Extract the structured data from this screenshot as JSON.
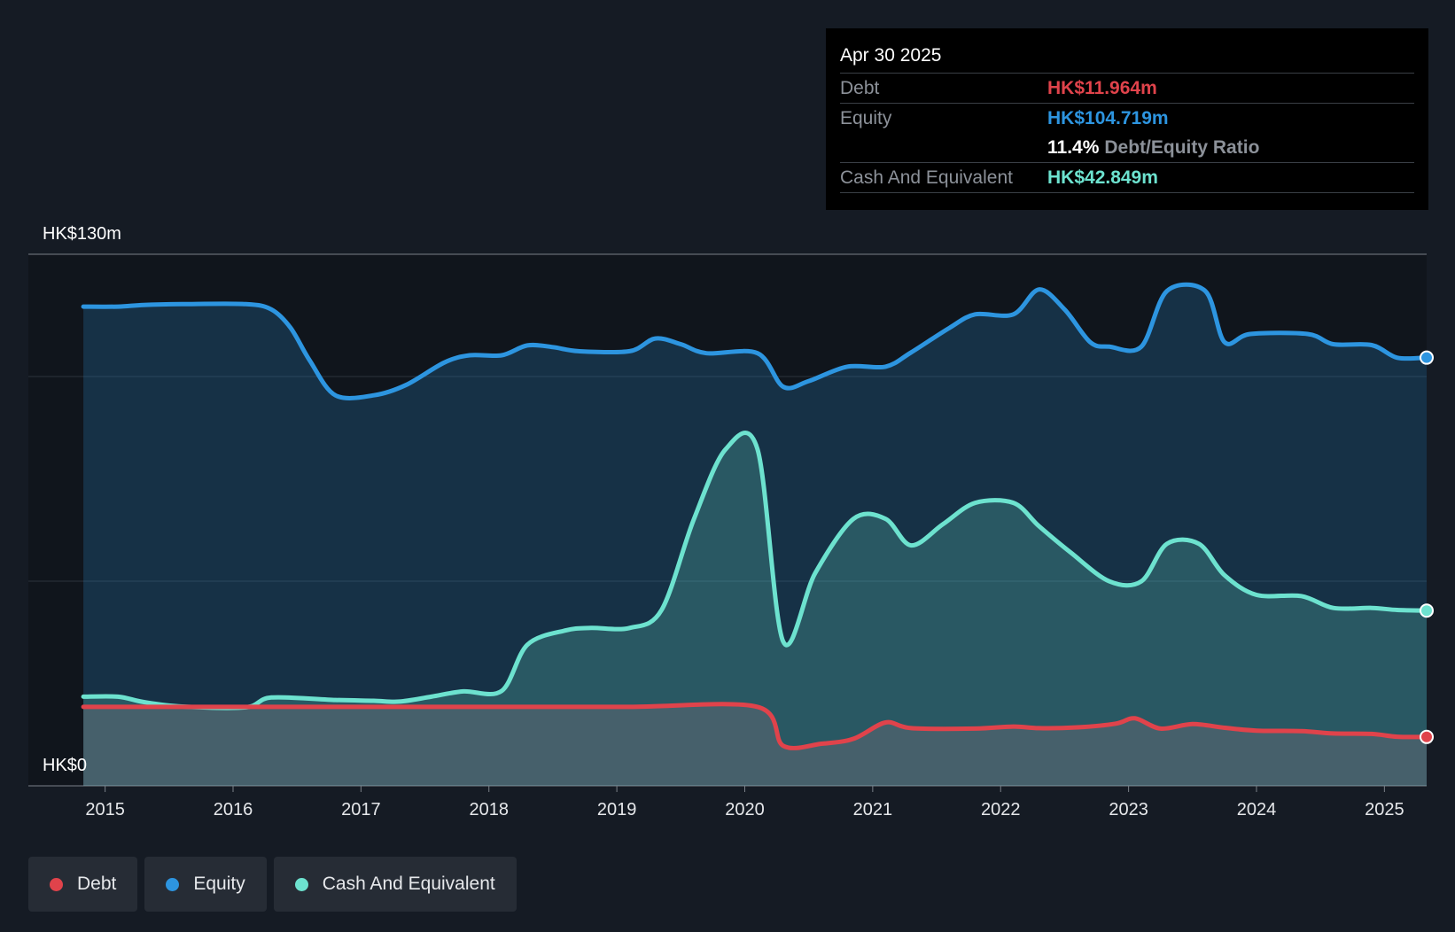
{
  "tooltip": {
    "date": "Apr 30 2025",
    "rows": [
      {
        "label": "Debt",
        "value": "HK$11.964m",
        "color": "#e0434b"
      },
      {
        "label": "Equity",
        "value": "HK$104.719m",
        "color": "#2d95e0"
      },
      {
        "ratio_value": "11.4%",
        "ratio_label": "Debt/Equity Ratio"
      },
      {
        "label": "Cash And Equivalent",
        "value": "HK$42.849m",
        "color": "#6de2cf"
      }
    ]
  },
  "legend": [
    {
      "label": "Debt",
      "color": "#e0434b"
    },
    {
      "label": "Equity",
      "color": "#2d95e0"
    },
    {
      "label": "Cash And Equivalent",
      "color": "#6de2cf"
    }
  ],
  "chart_data": {
    "type": "area",
    "y_top_label": "HK$130m",
    "y_bottom_label": "HK$0",
    "ylim": [
      0,
      130
    ],
    "xlim": [
      2014.4,
      2025.33
    ],
    "x_ticks": [
      "2015",
      "2016",
      "2017",
      "2018",
      "2019",
      "2020",
      "2021",
      "2022",
      "2023",
      "2024",
      "2025"
    ],
    "grid": "horizontal",
    "legend_position": "bottom-left",
    "series": [
      {
        "name": "Equity",
        "color": "#2d95e0",
        "points": [
          [
            2014.83,
            117.2
          ],
          [
            2015.1,
            117.2
          ],
          [
            2015.3,
            117.6
          ],
          [
            2015.6,
            117.8
          ],
          [
            2016.1,
            117.8
          ],
          [
            2016.3,
            116.5
          ],
          [
            2016.45,
            112
          ],
          [
            2016.6,
            104
          ],
          [
            2016.8,
            95.5
          ],
          [
            2017.1,
            95.5
          ],
          [
            2017.35,
            98
          ],
          [
            2017.65,
            103.5
          ],
          [
            2017.85,
            105.3
          ],
          [
            2018.1,
            105.3
          ],
          [
            2018.3,
            107.7
          ],
          [
            2018.5,
            107.3
          ],
          [
            2018.7,
            106.3
          ],
          [
            2019.1,
            106.3
          ],
          [
            2019.3,
            109.4
          ],
          [
            2019.5,
            108
          ],
          [
            2019.7,
            105.8
          ],
          [
            2020.1,
            105.8
          ],
          [
            2020.3,
            97.6
          ],
          [
            2020.5,
            99
          ],
          [
            2020.8,
            102.5
          ],
          [
            2021.1,
            102.5
          ],
          [
            2021.3,
            106
          ],
          [
            2021.6,
            112
          ],
          [
            2021.8,
            115.3
          ],
          [
            2022.1,
            115.3
          ],
          [
            2022.3,
            121.4
          ],
          [
            2022.5,
            116.5
          ],
          [
            2022.7,
            108.5
          ],
          [
            2022.85,
            107.4
          ],
          [
            2023.1,
            107.4
          ],
          [
            2023.3,
            121
          ],
          [
            2023.6,
            121
          ],
          [
            2023.75,
            108.5
          ],
          [
            2023.95,
            110.5
          ],
          [
            2024.4,
            110.5
          ],
          [
            2024.6,
            108
          ],
          [
            2024.9,
            107.8
          ],
          [
            2025.1,
            104.7
          ],
          [
            2025.33,
            104.719
          ]
        ]
      },
      {
        "name": "Cash And Equivalent",
        "color": "#6de2cf",
        "points": [
          [
            2014.83,
            21.8
          ],
          [
            2015.1,
            21.8
          ],
          [
            2015.3,
            20.5
          ],
          [
            2015.6,
            19.4
          ],
          [
            2016.1,
            19.2
          ],
          [
            2016.3,
            21.6
          ],
          [
            2016.8,
            21
          ],
          [
            2017.1,
            20.8
          ],
          [
            2017.3,
            20.6
          ],
          [
            2017.55,
            21.8
          ],
          [
            2017.8,
            23.1
          ],
          [
            2018.1,
            23.2
          ],
          [
            2018.3,
            34.5
          ],
          [
            2018.6,
            38
          ],
          [
            2018.8,
            38.6
          ],
          [
            2019.1,
            38.6
          ],
          [
            2019.35,
            43
          ],
          [
            2019.6,
            65
          ],
          [
            2019.85,
            82.3
          ],
          [
            2020.1,
            82.3
          ],
          [
            2020.3,
            35.3
          ],
          [
            2020.55,
            52
          ],
          [
            2020.85,
            65.3
          ],
          [
            2021.1,
            65.3
          ],
          [
            2021.3,
            58.8
          ],
          [
            2021.55,
            64
          ],
          [
            2021.8,
            69.2
          ],
          [
            2022.1,
            69.2
          ],
          [
            2022.3,
            63.5
          ],
          [
            2022.55,
            57
          ],
          [
            2022.85,
            50
          ],
          [
            2023.1,
            50
          ],
          [
            2023.3,
            59.2
          ],
          [
            2023.55,
            59.2
          ],
          [
            2023.75,
            51.5
          ],
          [
            2024.0,
            46.7
          ],
          [
            2024.35,
            46.4
          ],
          [
            2024.6,
            43.5
          ],
          [
            2024.9,
            43.5
          ],
          [
            2025.1,
            43.0
          ],
          [
            2025.33,
            42.849
          ]
        ]
      },
      {
        "name": "Debt",
        "color": "#e0434b",
        "points": [
          [
            2014.83,
            19.3
          ],
          [
            2015.1,
            19.3
          ],
          [
            2016.1,
            19.3
          ],
          [
            2017.1,
            19.3
          ],
          [
            2018.1,
            19.3
          ],
          [
            2019.1,
            19.3
          ],
          [
            2020.1,
            19.3
          ],
          [
            2020.3,
            9.8
          ],
          [
            2020.6,
            10.3
          ],
          [
            2020.85,
            11.5
          ],
          [
            2021.1,
            15.5
          ],
          [
            2021.3,
            14.1
          ],
          [
            2021.8,
            14
          ],
          [
            2022.1,
            14.5
          ],
          [
            2022.3,
            14.1
          ],
          [
            2022.6,
            14.3
          ],
          [
            2022.9,
            15.2
          ],
          [
            2023.05,
            16.5
          ],
          [
            2023.25,
            14
          ],
          [
            2023.5,
            15.1
          ],
          [
            2023.75,
            14.2
          ],
          [
            2024.0,
            13.5
          ],
          [
            2024.35,
            13.4
          ],
          [
            2024.6,
            12.8
          ],
          [
            2024.9,
            12.7
          ],
          [
            2025.1,
            12.0
          ],
          [
            2025.33,
            11.964
          ]
        ]
      }
    ]
  }
}
